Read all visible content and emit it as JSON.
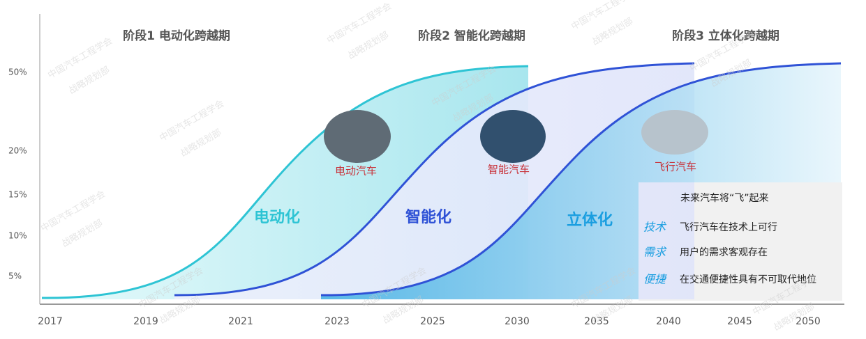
{
  "stages": [
    "阶段1 电动化跨越期",
    "阶段2 智能化跨越期",
    "阶段3 立体化跨越期"
  ],
  "y_axis_labels": [
    "50%",
    "20%",
    "15%",
    "10%",
    "5%"
  ],
  "x_axis_labels": [
    "2017",
    "2019",
    "2021",
    "2023",
    "2025",
    "2030",
    "2035",
    "2040",
    "2045",
    "2050"
  ],
  "phases": [
    "电动化",
    "智能化",
    "立体化"
  ],
  "vehicles": [
    "电动汽车",
    "智能汽车",
    "飞行汽车"
  ],
  "summary": {
    "headline": "未来汽车将“飞”起来",
    "items": [
      {
        "key": "技术",
        "text": "飞行汽车在技术上可行"
      },
      {
        "key": "需求",
        "text": "用户的需求客观存在"
      },
      {
        "key": "便捷",
        "text": "在交通便捷性具有不可取代地位"
      }
    ]
  },
  "watermark": [
    "中国汽车工程学会",
    "战略规划部"
  ]
}
